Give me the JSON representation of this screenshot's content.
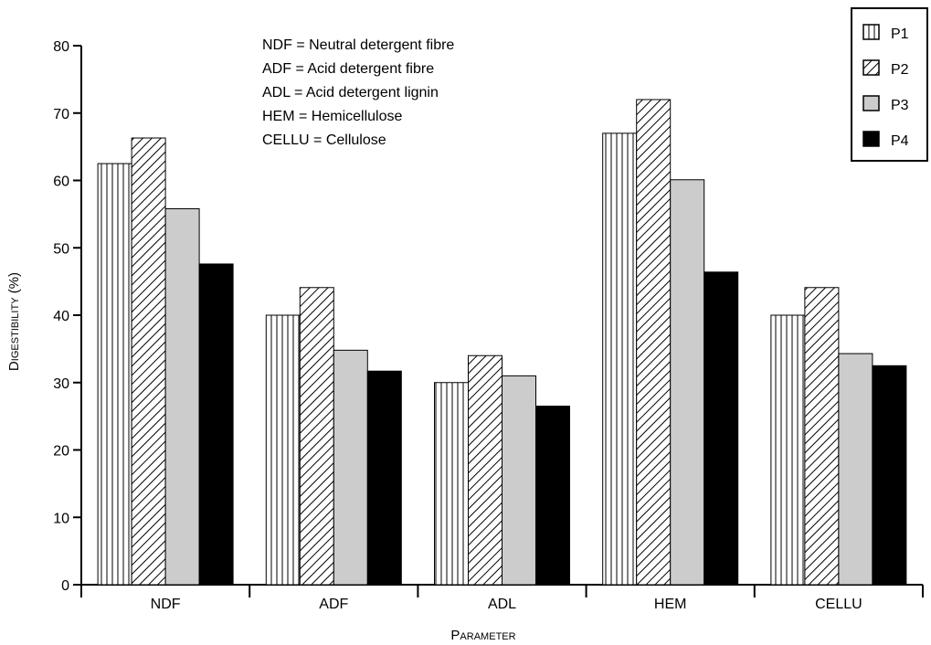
{
  "chart_data": {
    "type": "bar",
    "xlabel": "Parameter",
    "ylabel": "Digestibility (%)",
    "categories": [
      "NDF",
      "ADF",
      "ADL",
      "HEM",
      "CELLU"
    ],
    "series": [
      {
        "name": "P1",
        "values": [
          62.5,
          40.0,
          30.0,
          67.0,
          40.0
        ],
        "pattern": "vertical-lines"
      },
      {
        "name": "P2",
        "values": [
          66.3,
          44.1,
          34.0,
          72.0,
          44.1
        ],
        "pattern": "diagonal-hatch"
      },
      {
        "name": "P3",
        "values": [
          55.8,
          34.8,
          31.0,
          60.1,
          34.3
        ],
        "pattern": "light-gray",
        "color": "#cccccc"
      },
      {
        "name": "P4",
        "values": [
          47.6,
          31.7,
          26.5,
          46.4,
          32.5
        ],
        "pattern": "black",
        "color": "#000000"
      }
    ],
    "ylim": [
      0,
      80
    ],
    "yticks": [
      0,
      10,
      20,
      30,
      40,
      50,
      60,
      70,
      80
    ],
    "grid": false,
    "legend_position": "top-right",
    "annotations": [
      "NDF = Neutral detergent fibre",
      "ADF = Acid detergent fibre",
      "ADL = Acid detergent lignin",
      "HEM = Hemicellulose",
      "CELLU = Cellulose"
    ]
  }
}
